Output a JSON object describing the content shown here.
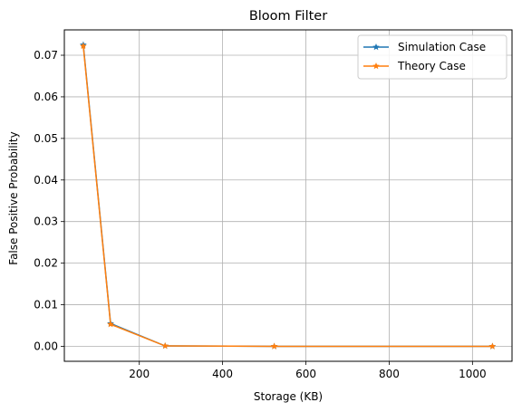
{
  "chart_data": {
    "type": "line",
    "title": "Bloom Filter",
    "xlabel": "Storage (KB)",
    "ylabel": "False Positive Probability",
    "xlim": [
      20,
      1095
    ],
    "ylim": [
      -0.0036,
      0.0761
    ],
    "xticks": [
      200,
      400,
      600,
      800,
      1000
    ],
    "yticks": [
      0.0,
      0.01,
      0.02,
      0.03,
      0.04,
      0.05,
      0.06,
      0.07
    ],
    "ytick_labels": [
      "0.00",
      "0.01",
      "0.02",
      "0.03",
      "0.04",
      "0.05",
      "0.06",
      "0.07"
    ],
    "grid": true,
    "legend_position": "top-right",
    "series": [
      {
        "name": "Simulation Case",
        "color": "#1f77b4",
        "marker": "star",
        "x": [
          65.5,
          131,
          262,
          524,
          1048
        ],
        "y": [
          0.0725,
          0.0055,
          0.0001,
          0.0,
          0.0
        ]
      },
      {
        "name": "Theory Case",
        "color": "#ff7f0e",
        "marker": "star",
        "x": [
          65.5,
          131,
          262,
          524,
          1048
        ],
        "y": [
          0.0722,
          0.0053,
          0.0001,
          0.0,
          0.0
        ]
      }
    ]
  }
}
